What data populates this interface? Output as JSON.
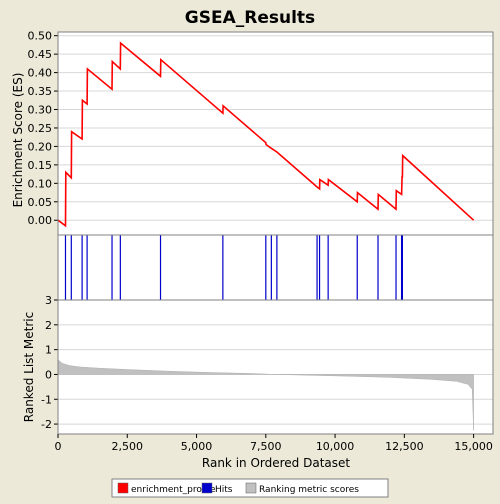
{
  "chart_data": {
    "type": "line",
    "title": "GSEA_Results",
    "xlabel": "Rank in Ordered Dataset",
    "xlim": [
      0,
      15700
    ],
    "xticks": [
      0,
      2500,
      5000,
      7500,
      10000,
      12500,
      15000
    ],
    "xtick_labels": [
      "0",
      "2,500",
      "5,000",
      "7,500",
      "10,000",
      "12,500",
      "15,000"
    ],
    "enrichment_profile": {
      "ylabel": "Enrichment Score (ES)",
      "ylim": [
        -0.04,
        0.51
      ],
      "yticks": [
        0.0,
        0.05,
        0.1,
        0.15,
        0.2,
        0.25,
        0.3,
        0.35,
        0.4,
        0.45,
        0.5
      ],
      "ytick_labels": [
        "0.00",
        "0.05",
        "0.10",
        "0.15",
        "0.20",
        "0.25",
        "0.30",
        "0.35",
        "0.40",
        "0.45",
        "0.50"
      ],
      "grid": true,
      "color": "#FF0000",
      "points": [
        [
          0,
          0.0
        ],
        [
          270,
          -0.015
        ],
        [
          280,
          0.13
        ],
        [
          480,
          0.115
        ],
        [
          490,
          0.24
        ],
        [
          870,
          0.22
        ],
        [
          880,
          0.325
        ],
        [
          1050,
          0.315
        ],
        [
          1060,
          0.41
        ],
        [
          1950,
          0.355
        ],
        [
          1960,
          0.43
        ],
        [
          2250,
          0.41
        ],
        [
          2260,
          0.48
        ],
        [
          3700,
          0.39
        ],
        [
          3710,
          0.435
        ],
        [
          5950,
          0.29
        ],
        [
          5960,
          0.31
        ],
        [
          7500,
          0.21
        ],
        [
          7510,
          0.205
        ],
        [
          7700,
          0.195
        ],
        [
          7900,
          0.185
        ],
        [
          9350,
          0.09
        ],
        [
          9440,
          0.085
        ],
        [
          9450,
          0.11
        ],
        [
          9750,
          0.095
        ],
        [
          9760,
          0.11
        ],
        [
          10800,
          0.05
        ],
        [
          10810,
          0.075
        ],
        [
          11550,
          0.03
        ],
        [
          11560,
          0.07
        ],
        [
          12200,
          0.03
        ],
        [
          12210,
          0.08
        ],
        [
          12400,
          0.07
        ],
        [
          12420,
          0.12
        ],
        [
          12430,
          0.115
        ],
        [
          12440,
          0.175
        ],
        [
          15000,
          0.0
        ]
      ]
    },
    "hits": {
      "color": "#0000CC",
      "positions": [
        270,
        480,
        870,
        1050,
        1950,
        2250,
        3700,
        5950,
        7500,
        7700,
        7900,
        9350,
        9440,
        9750,
        10800,
        11550,
        12200,
        12400,
        12430
      ]
    },
    "ranked_metric": {
      "ylabel": "Ranked List Metric",
      "ylim": [
        -2.4,
        3.0
      ],
      "yticks": [
        3,
        2,
        1,
        0,
        -1,
        -2
      ],
      "ytick_labels": [
        "3",
        "2",
        "1",
        "0",
        "-1",
        "-2"
      ],
      "color": "#C0C0C0",
      "profile": [
        [
          0,
          0.6
        ],
        [
          150,
          0.45
        ],
        [
          400,
          0.36
        ],
        [
          800,
          0.3
        ],
        [
          1500,
          0.25
        ],
        [
          2500,
          0.2
        ],
        [
          4000,
          0.13
        ],
        [
          5500,
          0.08
        ],
        [
          7000,
          0.04
        ],
        [
          7800,
          0.0
        ],
        [
          9000,
          -0.03
        ],
        [
          10500,
          -0.07
        ],
        [
          12000,
          -0.12
        ],
        [
          13500,
          -0.2
        ],
        [
          14400,
          -0.28
        ],
        [
          14800,
          -0.4
        ],
        [
          14950,
          -0.6
        ],
        [
          15000,
          -2.25
        ]
      ]
    },
    "legend": {
      "placement": "bottom-center",
      "items": [
        {
          "label": "enrichment_profile",
          "color": "#FF0000"
        },
        {
          "label": "Hits",
          "color": "#0000CC"
        },
        {
          "label": "Ranking metric scores",
          "color": "#C0C0C0"
        }
      ]
    }
  }
}
